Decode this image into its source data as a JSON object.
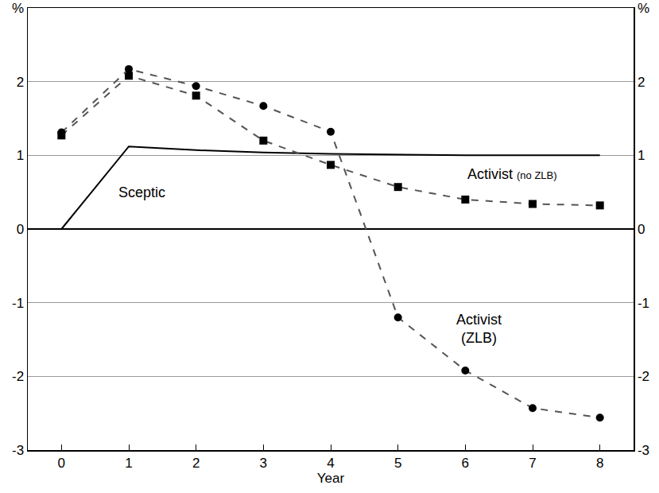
{
  "chart_data": {
    "type": "line",
    "x_label": "Year",
    "x": [
      0,
      1,
      2,
      3,
      4,
      5,
      6,
      7,
      8
    ],
    "series": [
      {
        "name": "Sceptic",
        "color": "#000000",
        "line_style": "solid",
        "marker": "none",
        "values": [
          0,
          1.12,
          1.07,
          1.04,
          1.02,
          1.01,
          1.0,
          1.0,
          1.0
        ]
      },
      {
        "name": "Activist (no ZLB)",
        "color": "#555555",
        "line_style": "dash",
        "marker": "square",
        "values": [
          1.27,
          2.08,
          1.81,
          1.2,
          0.87,
          0.57,
          0.4,
          0.34,
          0.32
        ]
      },
      {
        "name": "Activist (ZLB)",
        "color": "#555555",
        "line_style": "dash",
        "marker": "circle",
        "values": [
          1.31,
          2.17,
          1.94,
          1.67,
          1.32,
          -1.2,
          -1.92,
          -2.43,
          -2.56
        ]
      }
    ],
    "xlim": [
      -0.5,
      8.5
    ],
    "xticks": [
      0,
      1,
      2,
      3,
      4,
      5,
      6,
      7,
      8
    ],
    "ylim": [
      -3,
      3
    ],
    "yticks": [
      -3,
      -2,
      -1,
      0,
      1,
      2,
      {
        "value": 3,
        "label": "%"
      }
    ],
    "grid": true
  }
}
